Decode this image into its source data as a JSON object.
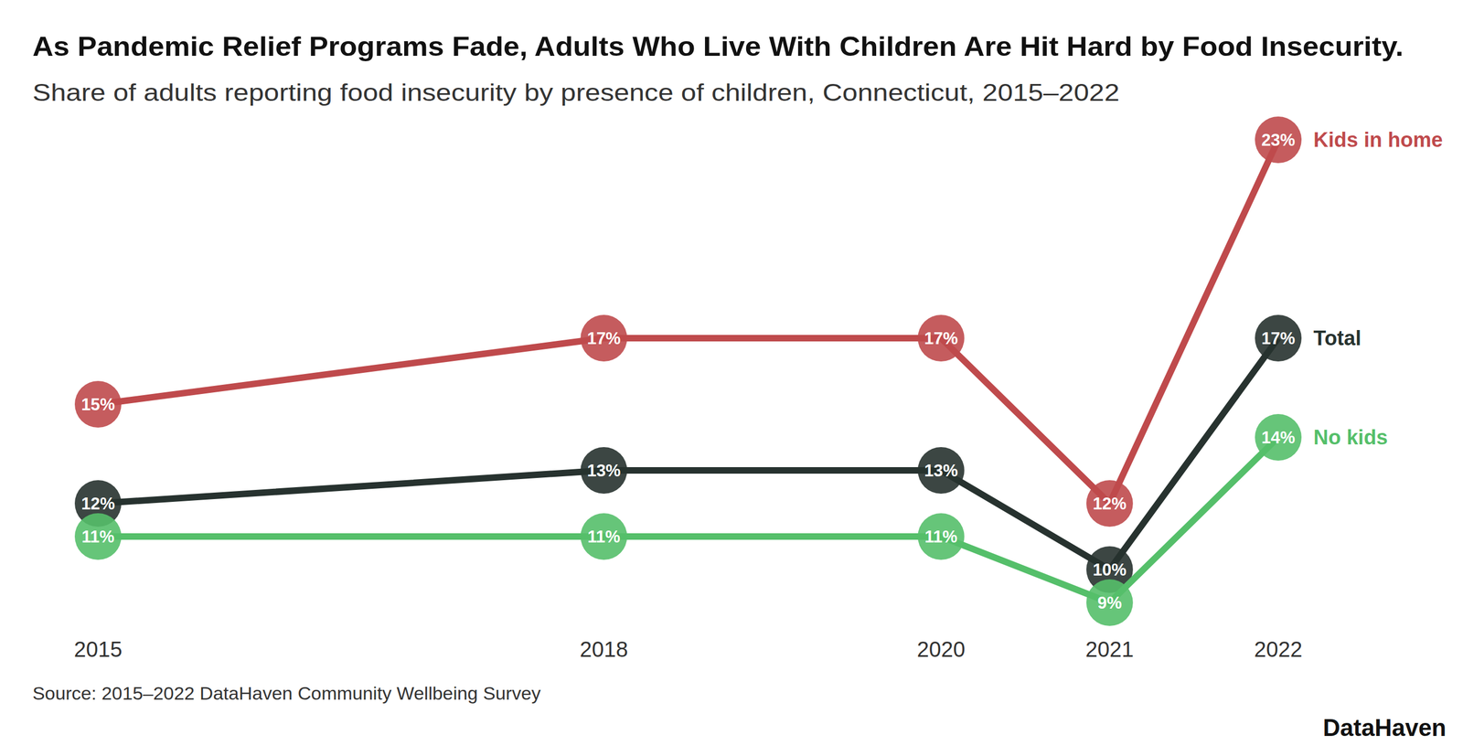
{
  "chart_data": {
    "type": "line",
    "title": "As Pandemic Relief Programs Fade, Adults Who Live With Children Are Hit Hard by Food Insecurity.",
    "subtitle": "Share of adults reporting food insecurity by presence of children, Connecticut, 2015–2022",
    "source": "Source: 2015–2022 DataHaven Community Wellbeing Survey",
    "credit": "DataHaven",
    "x": [
      2015,
      2018,
      2020,
      2021,
      2022
    ],
    "xlim": [
      2015,
      2022
    ],
    "xticks": [
      2015,
      2018,
      2020,
      2021,
      2022
    ],
    "ylim": [
      9,
      23
    ],
    "tick_labels": "x",
    "grid": false,
    "data_labels": true,
    "marker": "circle",
    "series": [
      {
        "name": "Kids in home",
        "color": "#bf4a4c",
        "values": [
          15,
          17,
          17,
          12,
          23
        ],
        "value_labels": [
          "15%",
          "17%",
          "17%",
          "12%",
          "23%"
        ]
      },
      {
        "name": "Total",
        "color": "#27322f",
        "values": [
          12,
          13,
          13,
          10,
          17
        ],
        "value_labels": [
          "12%",
          "13%",
          "13%",
          "10%",
          "17%"
        ]
      },
      {
        "name": "No kids",
        "color": "#55bf6a",
        "values": [
          11,
          11,
          11,
          9,
          14
        ],
        "value_labels": [
          "11%",
          "11%",
          "11%",
          "9%",
          "14%"
        ]
      }
    ]
  }
}
